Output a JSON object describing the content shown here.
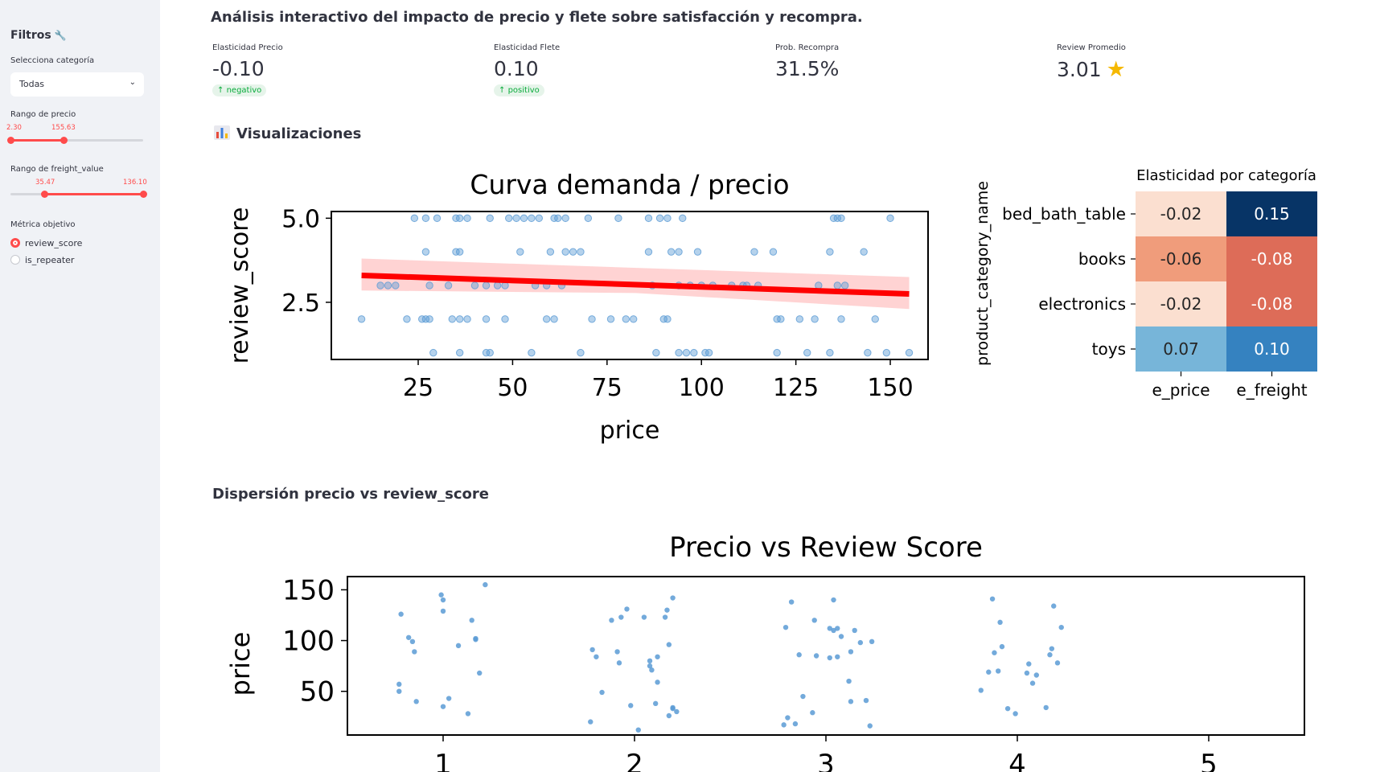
{
  "sidebar": {
    "title": "Filtros",
    "category_label": "Selecciona categoría",
    "category_value": "Todas",
    "price_range_label": "Rango de precio",
    "price_min": "2.30",
    "price_max": "155.63",
    "freight_range_label": "Rango de freight_value",
    "freight_min": "35.47",
    "freight_max": "136.10",
    "metric_label": "Métrica objetivo",
    "options": [
      "review_score",
      "is_repeater"
    ]
  },
  "header": {
    "title": "Análisis interactivo del impacto de precio y flete sobre satisfacción y recompra."
  },
  "metrics": [
    {
      "label": "Elasticidad Precio",
      "value": "-0.10",
      "delta": "negativo"
    },
    {
      "label": "Elasticidad Flete",
      "value": "0.10",
      "delta": "positivo"
    },
    {
      "label": "Prob. Recompra",
      "value": "31.5%"
    },
    {
      "label": "Review Promedio",
      "value": "3.01"
    }
  ],
  "sections": {
    "viz": "Visualizaciones",
    "scatter": "Dispersión precio vs review_score"
  },
  "colors": {
    "accent": "#ff4b4b",
    "points": "#5b9bd5",
    "regline": "#ff0000"
  },
  "chart_data": [
    {
      "type": "scatter",
      "title": "Curva demanda / precio",
      "xlabel": "price",
      "ylabel": "review_score",
      "xticks": [
        "25",
        "50",
        "75",
        "100",
        "125",
        "150"
      ],
      "yticks": [
        "2.5",
        "5.0"
      ],
      "xlim": [
        2,
        160
      ],
      "ylim": [
        0.8,
        5.2
      ],
      "regression": {
        "x": [
          10,
          155
        ],
        "y": [
          3.3,
          2.75
        ]
      },
      "points": [
        [
          24,
          5
        ],
        [
          27,
          5
        ],
        [
          30,
          5
        ],
        [
          35,
          5
        ],
        [
          36,
          5
        ],
        [
          38,
          5
        ],
        [
          44,
          5
        ],
        [
          49,
          5
        ],
        [
          51,
          5
        ],
        [
          53,
          5
        ],
        [
          55,
          5
        ],
        [
          57,
          5
        ],
        [
          61,
          5
        ],
        [
          62,
          5
        ],
        [
          64,
          5
        ],
        [
          70,
          5
        ],
        [
          78,
          5
        ],
        [
          86,
          5
        ],
        [
          89,
          5
        ],
        [
          91,
          5
        ],
        [
          95,
          5
        ],
        [
          135,
          5
        ],
        [
          136,
          5
        ],
        [
          137,
          5
        ],
        [
          150,
          5
        ],
        [
          27,
          4
        ],
        [
          35,
          4
        ],
        [
          36,
          4
        ],
        [
          52,
          4
        ],
        [
          60,
          4
        ],
        [
          64,
          4
        ],
        [
          66,
          4
        ],
        [
          68,
          4
        ],
        [
          86,
          4
        ],
        [
          92,
          4
        ],
        [
          94,
          4
        ],
        [
          99,
          4
        ],
        [
          114,
          4
        ],
        [
          119,
          4
        ],
        [
          134,
          4
        ],
        [
          143,
          4
        ],
        [
          15,
          3
        ],
        [
          17,
          3
        ],
        [
          19,
          3
        ],
        [
          28,
          3
        ],
        [
          33,
          3
        ],
        [
          40,
          3
        ],
        [
          43,
          3
        ],
        [
          46,
          3
        ],
        [
          48,
          3
        ],
        [
          56,
          3
        ],
        [
          59,
          3
        ],
        [
          63,
          3
        ],
        [
          87,
          3
        ],
        [
          94,
          3
        ],
        [
          97,
          3
        ],
        [
          100,
          3
        ],
        [
          103,
          3
        ],
        [
          108,
          3
        ],
        [
          111,
          3
        ],
        [
          112,
          3
        ],
        [
          115,
          3
        ],
        [
          131,
          3
        ],
        [
          136,
          3
        ],
        [
          138,
          3
        ],
        [
          10,
          2
        ],
        [
          22,
          2
        ],
        [
          26,
          2
        ],
        [
          27,
          2
        ],
        [
          28,
          2
        ],
        [
          34,
          2
        ],
        [
          36,
          2
        ],
        [
          38,
          2
        ],
        [
          43,
          2
        ],
        [
          48,
          2
        ],
        [
          59,
          2
        ],
        [
          61,
          2
        ],
        [
          71,
          2
        ],
        [
          76,
          2
        ],
        [
          80,
          2
        ],
        [
          82,
          2
        ],
        [
          90,
          2
        ],
        [
          91,
          2
        ],
        [
          120,
          2
        ],
        [
          121,
          2
        ],
        [
          126,
          2
        ],
        [
          130,
          2
        ],
        [
          137,
          2
        ],
        [
          146,
          2
        ],
        [
          29,
          1
        ],
        [
          36,
          1
        ],
        [
          43,
          1
        ],
        [
          44,
          1
        ],
        [
          55,
          1
        ],
        [
          68,
          1
        ],
        [
          88,
          1
        ],
        [
          94,
          1
        ],
        [
          96,
          1
        ],
        [
          98,
          1
        ],
        [
          101,
          1
        ],
        [
          102,
          1
        ],
        [
          120,
          1
        ],
        [
          128,
          1
        ],
        [
          134,
          1
        ],
        [
          144,
          1
        ],
        [
          149,
          1
        ],
        [
          155,
          1
        ]
      ]
    },
    {
      "type": "heatmap",
      "title": "Elasticidad por categoría",
      "ylabel": "product_category_name",
      "rows": [
        "bed_bath_table",
        "books",
        "electronics",
        "toys"
      ],
      "columns": [
        "e_price",
        "e_freight"
      ],
      "values": [
        [
          "-0.02",
          "0.15"
        ],
        [
          "-0.06",
          "-0.08"
        ],
        [
          "-0.02",
          "-0.08"
        ],
        [
          "0.07",
          "0.10"
        ]
      ],
      "cell_colors": [
        [
          "#fbdfd0",
          "#073466"
        ],
        [
          "#f09c7b",
          "#dd6c58"
        ],
        [
          "#fbdfd0",
          "#dd6c58"
        ],
        [
          "#77b5d9",
          "#3582c0"
        ]
      ],
      "text_colors": [
        [
          "#262626",
          "#ffffff"
        ],
        [
          "#262626",
          "#ffffff"
        ],
        [
          "#262626",
          "#ffffff"
        ],
        [
          "#262626",
          "#ffffff"
        ]
      ]
    },
    {
      "type": "scatter",
      "title": "Precio vs Review Score",
      "ylabel": "price",
      "xticks": [
        "1",
        "2",
        "3",
        "4",
        "5"
      ],
      "yticks": [
        "50",
        "100",
        "150"
      ],
      "xlim": [
        0.5,
        5.5
      ],
      "ylim": [
        7,
        163
      ],
      "points": [
        [
          0.78,
          126
        ],
        [
          0.82,
          103
        ],
        [
          0.84,
          99
        ],
        [
          0.85,
          89
        ],
        [
          0.77,
          57
        ],
        [
          0.77,
          50
        ],
        [
          0.86,
          40
        ],
        [
          0.99,
          145
        ],
        [
          1.0,
          140
        ],
        [
          1.0,
          129
        ],
        [
          1.08,
          95
        ],
        [
          1.03,
          43
        ],
        [
          1.0,
          35
        ],
        [
          1.13,
          28
        ],
        [
          1.15,
          120
        ],
        [
          1.17,
          102
        ],
        [
          1.17,
          101
        ],
        [
          1.19,
          68
        ],
        [
          1.22,
          155
        ],
        [
          1.78,
          91
        ],
        [
          1.8,
          84
        ],
        [
          1.83,
          49
        ],
        [
          1.77,
          20
        ],
        [
          1.88,
          120
        ],
        [
          1.93,
          123
        ],
        [
          1.98,
          36
        ],
        [
          2.02,
          12
        ],
        [
          1.96,
          131
        ],
        [
          1.91,
          89
        ],
        [
          1.92,
          78
        ],
        [
          2.05,
          123
        ],
        [
          2.08,
          80
        ],
        [
          2.09,
          71
        ],
        [
          2.08,
          75
        ],
        [
          2.12,
          84
        ],
        [
          2.16,
          123
        ],
        [
          2.17,
          130
        ],
        [
          2.2,
          142
        ],
        [
          2.18,
          96
        ],
        [
          2.11,
          38
        ],
        [
          2.12,
          59
        ],
        [
          2.18,
          26
        ],
        [
          2.2,
          34
        ],
        [
          2.2,
          33
        ],
        [
          2.22,
          30
        ],
        [
          2.79,
          113
        ],
        [
          2.82,
          138
        ],
        [
          2.86,
          86
        ],
        [
          2.88,
          45
        ],
        [
          2.8,
          24
        ],
        [
          2.84,
          18
        ],
        [
          2.78,
          17
        ],
        [
          2.93,
          29
        ],
        [
          2.94,
          120
        ],
        [
          2.95,
          85
        ],
        [
          3.02,
          112
        ],
        [
          3.02,
          83
        ],
        [
          3.04,
          110
        ],
        [
          3.04,
          140
        ],
        [
          3.06,
          112
        ],
        [
          3.06,
          84
        ],
        [
          3.08,
          104
        ],
        [
          3.12,
          60
        ],
        [
          3.13,
          89
        ],
        [
          3.13,
          40
        ],
        [
          3.15,
          110
        ],
        [
          3.18,
          98
        ],
        [
          3.21,
          41
        ],
        [
          3.23,
          16
        ],
        [
          3.24,
          99
        ],
        [
          3.81,
          51
        ],
        [
          3.85,
          69
        ],
        [
          3.87,
          141
        ],
        [
          3.91,
          118
        ],
        [
          3.92,
          94
        ],
        [
          3.88,
          88
        ],
        [
          3.9,
          70
        ],
        [
          3.95,
          33
        ],
        [
          3.99,
          28
        ],
        [
          4.06,
          77
        ],
        [
          4.05,
          68
        ],
        [
          4.08,
          58
        ],
        [
          4.1,
          66
        ],
        [
          4.15,
          34
        ],
        [
          4.17,
          86
        ],
        [
          4.18,
          92
        ],
        [
          4.19,
          134
        ],
        [
          4.21,
          78
        ],
        [
          4.23,
          113
        ]
      ]
    }
  ]
}
